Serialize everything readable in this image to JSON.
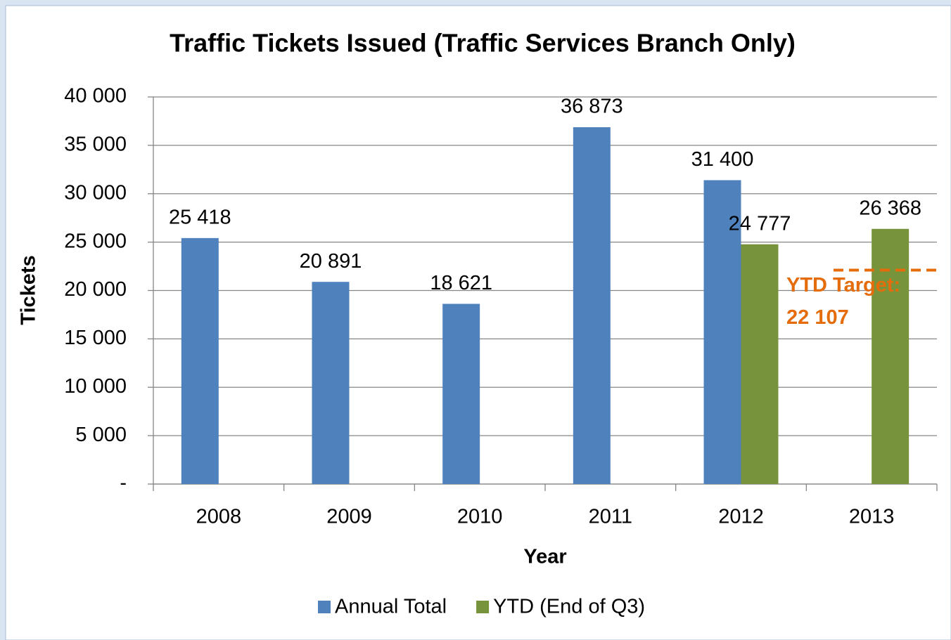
{
  "chart_data": {
    "type": "bar",
    "title": "Traffic Tickets Issued (Traffic Services Branch Only)",
    "x_label": "Year",
    "y_label": "Tickets",
    "categories": [
      "2008",
      "2009",
      "2010",
      "2011",
      "2012",
      "2013"
    ],
    "series": [
      {
        "name": "Annual Total",
        "color": "#4f81bd",
        "values": [
          25418,
          20891,
          18621,
          36873,
          31400,
          null
        ],
        "value_labels": [
          "25 418",
          "20 891",
          "18 621",
          "36 873",
          "31 400",
          null
        ]
      },
      {
        "name": "YTD (End of Q3)",
        "color": "#77933c",
        "values": [
          null,
          null,
          null,
          null,
          24777,
          26368
        ],
        "value_labels": [
          null,
          null,
          null,
          null,
          "24 777",
          "26 368"
        ]
      }
    ],
    "ylim": [
      0,
      40000
    ],
    "yticks": [
      {
        "value": 0,
        "label": "-"
      },
      {
        "value": 5000,
        "label": "5 000"
      },
      {
        "value": 10000,
        "label": "10 000"
      },
      {
        "value": 15000,
        "label": "15 000"
      },
      {
        "value": 20000,
        "label": "20 000"
      },
      {
        "value": 25000,
        "label": "25 000"
      },
      {
        "value": 30000,
        "label": "30 000"
      },
      {
        "value": 35000,
        "label": "35 000"
      },
      {
        "value": 40000,
        "label": "40 000"
      }
    ],
    "grid": true,
    "annotations": [
      {
        "label": "YTD Target:",
        "value": 22107,
        "value_label": "22 107",
        "color": "#e46c0a"
      }
    ]
  }
}
